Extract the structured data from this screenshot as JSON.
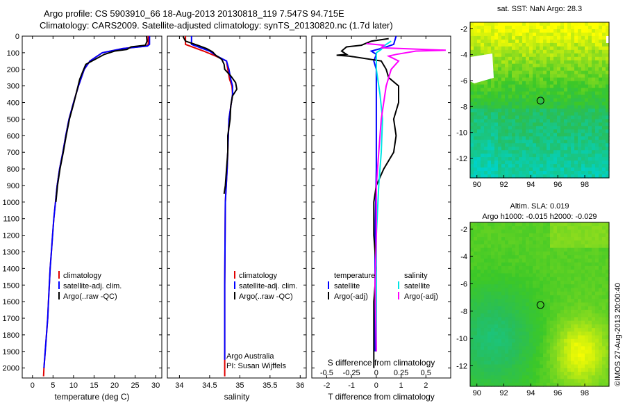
{
  "titles": {
    "line1": "Argo profile: CS 5903910_66 18-Aug-2013 20130818_119 7.547S 94.715E",
    "line2": "Climatology: CARS2009. Satellite-adjusted climatology: synTS_20130820.nc (1.7d later)"
  },
  "colors": {
    "climatology": "#e00000",
    "satellite": "#0000ff",
    "argo": "#000000",
    "sat_salinity": "#00e5e5",
    "argo_adj_sal": "#ff00ff"
  },
  "chart_data": [
    {
      "type": "line",
      "name": "temperature",
      "xlabel": "temperature (deg C)",
      "xlim": [
        -2.5,
        31.5
      ],
      "xticks": [
        0,
        5,
        10,
        15,
        20,
        25,
        30
      ],
      "ylim": [
        2060,
        0
      ],
      "yticks": [
        0,
        100,
        200,
        300,
        400,
        500,
        600,
        700,
        800,
        900,
        1000,
        1100,
        1200,
        1300,
        1400,
        1500,
        1600,
        1700,
        1800,
        1900,
        2000
      ],
      "legend": [
        "climatology",
        "satellite-adj. clim.",
        "Argo(..raw -QC)"
      ],
      "series": [
        {
          "name": "climatology",
          "color": "#e00000",
          "points": [
            [
              28.2,
              0
            ],
            [
              28.2,
              50
            ],
            [
              27.8,
              60
            ],
            [
              22,
              75
            ],
            [
              17,
              100
            ],
            [
              14,
              150
            ],
            [
              12.6,
              200
            ],
            [
              11.2,
              300
            ],
            [
              10,
              400
            ],
            [
              8.9,
              500
            ],
            [
              8.1,
              600
            ],
            [
              7.4,
              700
            ],
            [
              6.6,
              800
            ],
            [
              6,
              900
            ],
            [
              5.6,
              1000
            ],
            [
              5.2,
              1100
            ],
            [
              4.9,
              1200
            ],
            [
              4.6,
              1300
            ],
            [
              4.3,
              1400
            ],
            [
              4.1,
              1500
            ],
            [
              3.9,
              1600
            ],
            [
              3.7,
              1700
            ],
            [
              3.4,
              1800
            ],
            [
              3.1,
              1900
            ],
            [
              2.8,
              2000
            ],
            [
              2.7,
              2050
            ]
          ]
        },
        {
          "name": "satellite-adj. clim.",
          "color": "#0000ff",
          "points": [
            [
              28.5,
              0
            ],
            [
              28.5,
              50
            ],
            [
              28,
              60
            ],
            [
              22,
              75
            ],
            [
              17,
              100
            ],
            [
              14,
              150
            ],
            [
              12.6,
              200
            ],
            [
              11.2,
              300
            ],
            [
              10,
              400
            ],
            [
              8.9,
              500
            ],
            [
              8.1,
              600
            ],
            [
              7.4,
              700
            ],
            [
              6.6,
              800
            ],
            [
              6,
              900
            ],
            [
              5.6,
              1000
            ],
            [
              5.2,
              1100
            ],
            [
              4.9,
              1200
            ],
            [
              4.6,
              1300
            ],
            [
              4.3,
              1400
            ],
            [
              4.1,
              1500
            ],
            [
              3.9,
              1600
            ],
            [
              3.7,
              1700
            ],
            [
              3.4,
              1800
            ],
            [
              3.1,
              1900
            ],
            [
              2.8,
              2000
            ]
          ]
        },
        {
          "name": "Argo(..raw -QC)",
          "color": "#000000",
          "points": [
            [
              27.8,
              2
            ],
            [
              27.9,
              30
            ],
            [
              27.5,
              55
            ],
            [
              24,
              65
            ],
            [
              23,
              80
            ],
            [
              20,
              90
            ],
            [
              17.5,
              110
            ],
            [
              16,
              130
            ],
            [
              13,
              170
            ],
            [
              12.3,
              210
            ],
            [
              11.5,
              260
            ],
            [
              11.1,
              300
            ],
            [
              10.1,
              400
            ],
            [
              9,
              500
            ],
            [
              8.2,
              600
            ],
            [
              7.5,
              700
            ],
            [
              6.7,
              800
            ],
            [
              6.1,
              900
            ],
            [
              5.7,
              1000
            ]
          ]
        }
      ]
    },
    {
      "type": "line",
      "name": "salinity",
      "xlabel": "salinity",
      "xlim": [
        33.8,
        36.1
      ],
      "xticks": [
        34,
        34.5,
        35,
        35.5,
        36
      ],
      "ylim": [
        2060,
        0
      ],
      "legend": [
        "climatology",
        "satellite-adj. clim.",
        "Argo(..raw -QC)"
      ],
      "note_lines": [
        "Argo Australia",
        "PI: Susan Wijffels"
      ],
      "series": [
        {
          "name": "climatology",
          "color": "#e00000",
          "points": [
            [
              34.1,
              0
            ],
            [
              34.1,
              50
            ],
            [
              34.4,
              90
            ],
            [
              34.6,
              120
            ],
            [
              34.78,
              150
            ],
            [
              34.8,
              200
            ],
            [
              34.83,
              260
            ],
            [
              34.87,
              300
            ],
            [
              34.88,
              350
            ],
            [
              34.82,
              500
            ],
            [
              34.79,
              800
            ],
            [
              34.76,
              1000
            ],
            [
              34.75,
              1500
            ],
            [
              34.75,
              2050
            ]
          ]
        },
        {
          "name": "satellite-adj. clim.",
          "color": "#0000ff",
          "points": [
            [
              34.2,
              0
            ],
            [
              34.2,
              50
            ],
            [
              34.5,
              90
            ],
            [
              34.62,
              120
            ],
            [
              34.78,
              150
            ],
            [
              34.82,
              200
            ],
            [
              34.85,
              260
            ],
            [
              34.88,
              300
            ],
            [
              34.88,
              350
            ],
            [
              34.82,
              500
            ],
            [
              34.79,
              800
            ],
            [
              34.76,
              1000
            ],
            [
              34.75,
              1500
            ],
            [
              34.75,
              1950
            ]
          ]
        },
        {
          "name": "Argo(..raw -QC)",
          "color": "#000000",
          "points": [
            [
              34.06,
              2
            ],
            [
              34.1,
              30
            ],
            [
              34.3,
              55
            ],
            [
              34.45,
              75
            ],
            [
              34.55,
              95
            ],
            [
              34.6,
              115
            ],
            [
              34.7,
              140
            ],
            [
              34.74,
              170
            ],
            [
              34.75,
              200
            ],
            [
              34.85,
              240
            ],
            [
              34.93,
              280
            ],
            [
              34.95,
              320
            ],
            [
              34.88,
              360
            ],
            [
              34.85,
              420
            ],
            [
              34.84,
              500
            ],
            [
              34.8,
              600
            ],
            [
              34.8,
              700
            ],
            [
              34.78,
              800
            ],
            [
              34.76,
              900
            ],
            [
              34.74,
              950
            ]
          ]
        }
      ]
    },
    {
      "type": "line",
      "name": "difference",
      "xlabel": "T difference from climatology",
      "xlabel_top": "S difference from climatology",
      "xlim": [
        -2.6,
        3.0
      ],
      "xticks": [
        -2,
        -1,
        0,
        1,
        2
      ],
      "xticks_top": [
        "-0.5",
        "-0.25",
        "0",
        "0.25",
        "0.5"
      ],
      "ylim": [
        2060,
        0
      ],
      "legend_temperature_title": "temperature",
      "legend_salinity_title": "salinity",
      "legend": [
        "satellite",
        "Argo(-adj)",
        "satellite",
        "Argo(-adj)"
      ],
      "series": [
        {
          "name": "satellite",
          "group": "temperature",
          "color": "#0000ff",
          "points": [
            [
              0.8,
              0
            ],
            [
              0.7,
              50
            ],
            [
              0.3,
              70
            ],
            [
              -0.2,
              90
            ],
            [
              0,
              110
            ],
            [
              -0.1,
              150
            ],
            [
              0,
              200
            ],
            [
              0,
              400
            ],
            [
              0,
              800
            ],
            [
              -0.05,
              1200
            ],
            [
              -0.05,
              1600
            ],
            [
              -0.05,
              1900
            ]
          ]
        },
        {
          "name": "Argo(-adj)",
          "group": "temperature",
          "color": "#000000",
          "points": [
            [
              0.5,
              15
            ],
            [
              -0.2,
              30
            ],
            [
              -0.6,
              55
            ],
            [
              -1.2,
              65
            ],
            [
              -1.4,
              90
            ],
            [
              -1.2,
              110
            ],
            [
              -1.6,
              115
            ],
            [
              -1.1,
              120
            ],
            [
              0.2,
              150
            ],
            [
              0.4,
              200
            ],
            [
              0.5,
              250
            ],
            [
              0.9,
              300
            ],
            [
              0.9,
              400
            ],
            [
              0.7,
              500
            ],
            [
              0.8,
              600
            ],
            [
              0.7,
              700
            ],
            [
              0.3,
              800
            ],
            [
              0,
              900
            ],
            [
              -0.1,
              1000
            ],
            [
              -0.1,
              1200
            ],
            [
              0,
              1400
            ],
            [
              -0.1,
              1600
            ],
            [
              -0.1,
              1800
            ],
            [
              -0.1,
              2000
            ]
          ]
        },
        {
          "name": "satellite",
          "group": "salinity",
          "color": "#00e5e5",
          "points": [
            [
              0.6,
              30
            ],
            [
              0.3,
              60
            ],
            [
              0.2,
              80
            ],
            [
              0,
              100
            ],
            [
              0,
              200
            ],
            [
              0.15,
              350
            ],
            [
              0.25,
              500
            ],
            [
              0.2,
              700
            ],
            [
              0.1,
              900
            ],
            [
              0,
              1200
            ],
            [
              0,
              1500
            ],
            [
              0,
              1900
            ]
          ]
        },
        {
          "name": "Argo(-adj)",
          "group": "salinity",
          "color": "#ff00ff",
          "points": [
            [
              -0.4,
              45
            ],
            [
              0.3,
              55
            ],
            [
              0.2,
              70
            ],
            [
              2.8,
              85
            ],
            [
              1.6,
              90
            ],
            [
              0.8,
              110
            ],
            [
              0.5,
              120
            ],
            [
              0.9,
              150
            ],
            [
              0.6,
              200
            ],
            [
              0.4,
              300
            ],
            [
              0.2,
              500
            ],
            [
              0.1,
              700
            ],
            [
              0,
              900
            ],
            [
              0,
              1200
            ],
            [
              -0.05,
              1500
            ],
            [
              0,
              1900
            ]
          ]
        }
      ]
    }
  ],
  "maps": {
    "sst_title": "sat. SST: NaN Argo: 28.3",
    "sla_title1": "Altim. SLA: 0.019",
    "sla_title2": "Argo h1000: -0.015 h2000: -0.029",
    "xticks": [
      "90",
      "92",
      "94",
      "96",
      "98"
    ],
    "yticks": [
      "-2",
      "-4",
      "-6",
      "-8",
      "-10",
      "-12"
    ],
    "profile_marker": [
      94.715,
      -7.547
    ],
    "footer": "©IMOS 27-Aug-2013 20:00:40"
  }
}
